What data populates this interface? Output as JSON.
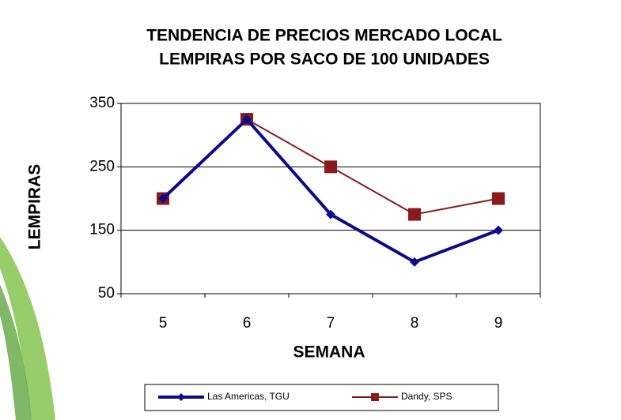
{
  "chart_data": {
    "type": "line",
    "title": [
      "TENDENCIA DE PRECIOS MERCADO LOCAL",
      "LEMPIRAS POR SACO DE 100 UNIDADES"
    ],
    "x_label": "SEMANA",
    "y_label": "LEMPIRAS",
    "categories": [
      "5",
      "6",
      "7",
      "8",
      "9"
    ],
    "series": [
      {
        "name": "Las Americas, TGU",
        "color": "#0a0a8c",
        "marker": "diamond",
        "values": [
          200,
          325,
          175,
          100,
          150
        ]
      },
      {
        "name": "Dandy, SPS",
        "color": "#8b1a1a",
        "marker": "square",
        "values": [
          200,
          325,
          250,
          175,
          200
        ]
      }
    ],
    "ylim": [
      50,
      350
    ],
    "yticks": [
      50,
      150,
      250,
      350
    ],
    "grid": true
  }
}
